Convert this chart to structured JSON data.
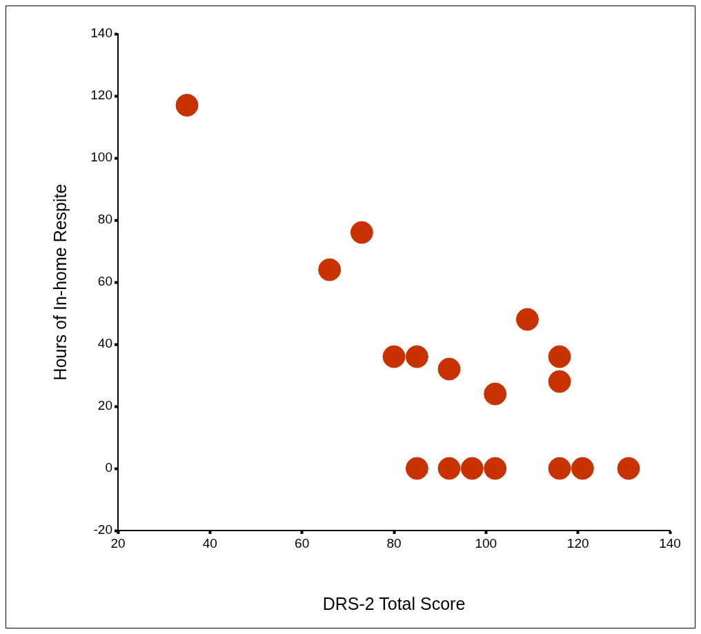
{
  "chart_data": {
    "type": "scatter",
    "xlabel": "DRS-2 Total Score",
    "ylabel": "Hours of In-home Respite",
    "x": [
      35,
      66,
      73,
      80,
      85,
      92,
      102,
      109,
      116,
      116,
      85,
      92,
      97,
      102,
      116,
      121,
      131
    ],
    "values": [
      117,
      64,
      76,
      36,
      36,
      32,
      24,
      48,
      36,
      28,
      0,
      0,
      0,
      0,
      0,
      0,
      0
    ],
    "color": "#c83200",
    "marker": "circle",
    "grid": false,
    "legend": false,
    "xlim": [
      20,
      140
    ],
    "xticks": [
      20,
      40,
      60,
      80,
      100,
      120,
      140
    ],
    "ylim": [
      -20,
      140
    ],
    "yticks": [
      -20,
      0,
      20,
      40,
      60,
      80,
      100,
      120,
      140
    ]
  }
}
